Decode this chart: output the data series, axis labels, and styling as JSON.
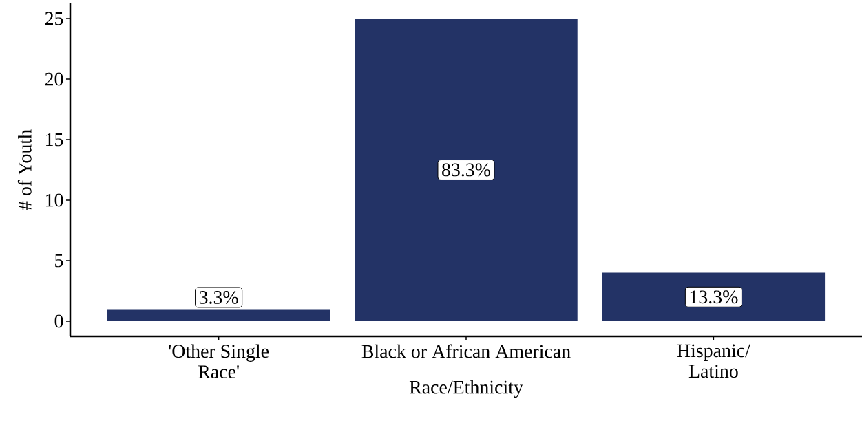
{
  "chart_data": {
    "type": "bar",
    "xlabel": "Race/Ethnicity",
    "ylabel": "# of Youth",
    "categories": [
      "'Other Single Race'",
      "Black or African American",
      "Hispanic/ Latino"
    ],
    "values": [
      1,
      25,
      4
    ],
    "color": "#233366",
    "annotations": [
      "3.3%",
      "83.3%",
      "13.3%"
    ],
    "ylim": [
      -1.25,
      26.25
    ],
    "yticks": [
      0,
      5,
      10,
      15,
      20,
      25
    ]
  }
}
